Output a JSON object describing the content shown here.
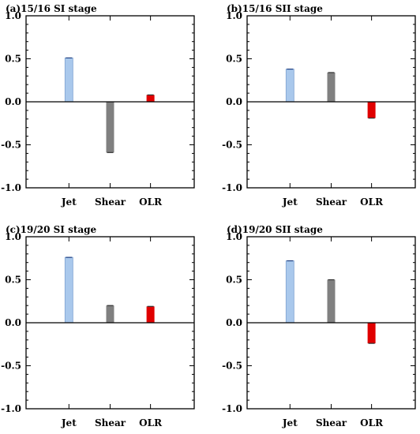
{
  "chart_data": [
    {
      "type": "bar",
      "title": "(a)15/16 SI stage",
      "categories": [
        "Jet",
        "Shear",
        "OLR"
      ],
      "values": [
        0.51,
        -0.59,
        0.08
      ],
      "colors": [
        "#a9c8ec",
        "#808080",
        "#e00000"
      ],
      "ylim": [
        -1.0,
        1.0
      ],
      "yticks": [
        "1.0",
        "0.5",
        "0.0",
        "-0.5",
        "-1.0"
      ],
      "grid": false
    },
    {
      "type": "bar",
      "title": "(b)15/16 SII stage",
      "categories": [
        "Jet",
        "Shear",
        "OLR"
      ],
      "values": [
        0.38,
        0.34,
        -0.19
      ],
      "colors": [
        "#a9c8ec",
        "#808080",
        "#e00000"
      ],
      "ylim": [
        -1.0,
        1.0
      ],
      "yticks": [
        "1.0",
        "0.5",
        "0.0",
        "-0.5",
        "-1.0"
      ],
      "grid": false
    },
    {
      "type": "bar",
      "title": "(c)19/20 SI stage",
      "categories": [
        "Jet",
        "Shear",
        "OLR"
      ],
      "values": [
        0.76,
        0.2,
        0.19
      ],
      "colors": [
        "#a9c8ec",
        "#808080",
        "#e00000"
      ],
      "ylim": [
        -1.0,
        1.0
      ],
      "yticks": [
        "1.0",
        "0.5",
        "0.0",
        "-0.5",
        "-1.0"
      ],
      "grid": false
    },
    {
      "type": "bar",
      "title": "(d)19/20 SII stage",
      "categories": [
        "Jet",
        "Shear",
        "OLR"
      ],
      "values": [
        0.72,
        0.5,
        -0.24
      ],
      "colors": [
        "#a9c8ec",
        "#808080",
        "#e00000"
      ],
      "ylim": [
        -1.0,
        1.0
      ],
      "yticks": [
        "1.0",
        "0.5",
        "0.0",
        "-0.5",
        "-1.0"
      ],
      "grid": false
    }
  ]
}
